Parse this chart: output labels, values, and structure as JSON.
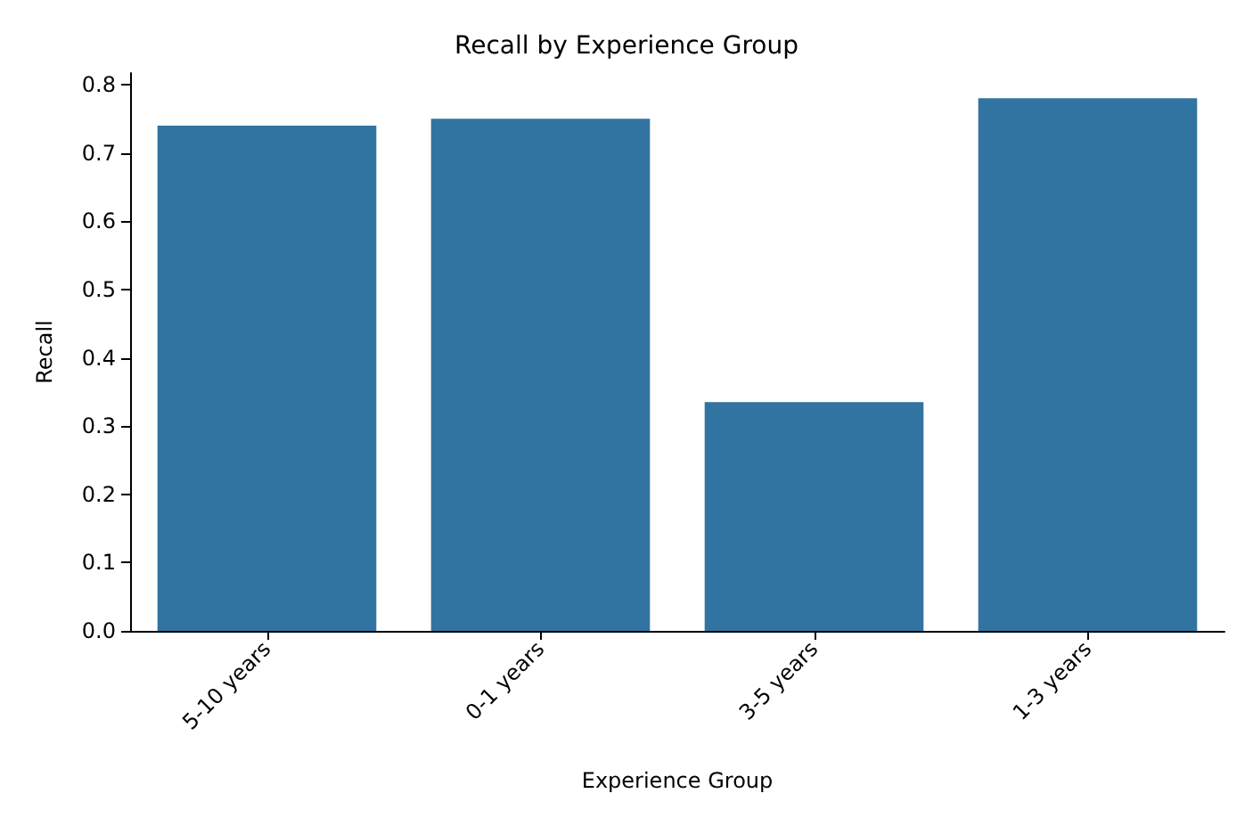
{
  "chart_data": {
    "type": "bar",
    "title": "Recall by Experience Group",
    "xlabel": "Experience Group",
    "ylabel": "Recall",
    "categories": [
      "5-10 years",
      "0-1 years",
      "3-5 years",
      "1-3 years"
    ],
    "values": [
      0.74,
      0.75,
      0.335,
      0.78
    ],
    "color": "#3274a1",
    "ylim": [
      0,
      0.817
    ],
    "yticks": [
      {
        "value": 0,
        "label": "0.0"
      },
      0.1,
      0.2,
      0.3,
      0.4,
      0.5,
      0.6,
      0.7,
      0.8
    ],
    "grid": false
  }
}
